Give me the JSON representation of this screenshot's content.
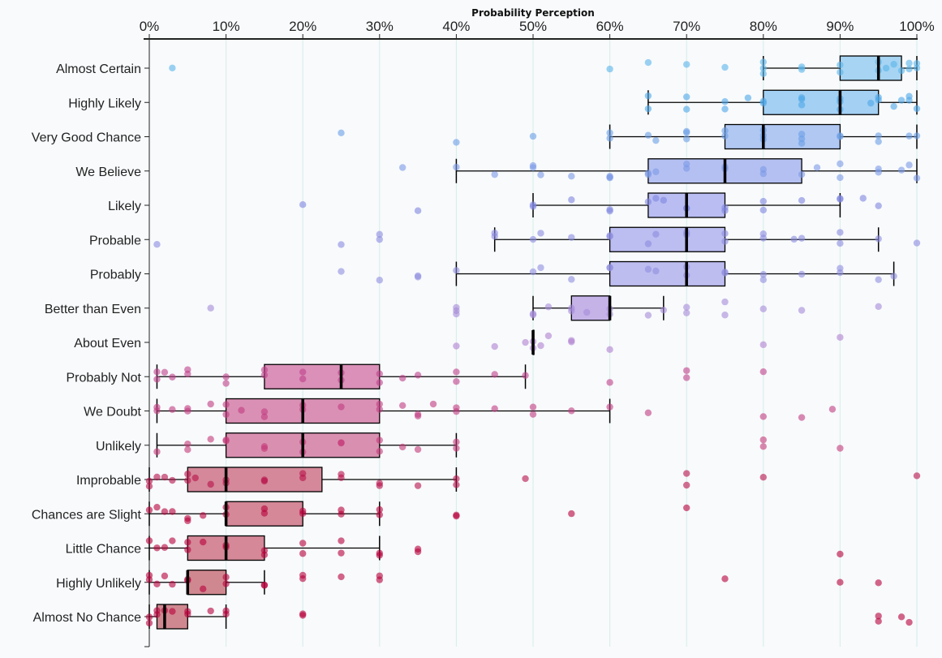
{
  "chart_data": {
    "type": "box",
    "title": "Probability Perception",
    "xlabel": "Probability Perception",
    "ylabel": "",
    "xlim": [
      0,
      100
    ],
    "x_ticks": [
      "0%",
      "10%",
      "20%",
      "30%",
      "40%",
      "50%",
      "60%",
      "70%",
      "80%",
      "90%",
      "100%"
    ],
    "grid": true,
    "rows": [
      {
        "label": "Almost Certain",
        "whisker": [
          80,
          100
        ],
        "box": [
          90,
          98
        ],
        "median": 95,
        "point_color": "#5ab4ea",
        "box_color": "#a6d4f2",
        "points": [
          3,
          60,
          65,
          70,
          75,
          80,
          80,
          80,
          85,
          85,
          90,
          90,
          95,
          95,
          96,
          97,
          98,
          99,
          99,
          100,
          100
        ]
      },
      {
        "label": "Highly Likely",
        "whisker": [
          65,
          100
        ],
        "box": [
          80,
          95
        ],
        "median": 90,
        "point_color": "#4da6e8",
        "box_color": "#a3d0f3",
        "points": [
          65,
          65,
          70,
          70,
          75,
          75,
          78,
          80,
          80,
          85,
          85,
          85,
          90,
          90,
          90,
          94,
          95,
          95,
          97,
          98,
          99,
          99,
          100
        ]
      },
      {
        "label": "Very Good Chance",
        "whisker": [
          60,
          100
        ],
        "box": [
          75,
          90
        ],
        "median": 80,
        "point_color": "#6a9ee6",
        "box_color": "#b0c8f2",
        "points": [
          25,
          40,
          50,
          60,
          60,
          65,
          66,
          70,
          70,
          70,
          75,
          75,
          80,
          80,
          80,
          85,
          85,
          85,
          90,
          90,
          95,
          95,
          99,
          100
        ]
      },
      {
        "label": "We Believe",
        "whisker": [
          40,
          100
        ],
        "box": [
          65,
          85
        ],
        "median": 75,
        "point_color": "#7b9ae6",
        "box_color": "#b5c0f2",
        "points": [
          33,
          40,
          45,
          50,
          50,
          51,
          55,
          60,
          60,
          60,
          65,
          65,
          66,
          70,
          70,
          75,
          75,
          80,
          80,
          85,
          87,
          90,
          90,
          95,
          95,
          98,
          99,
          100
        ]
      },
      {
        "label": "Likely",
        "whisker": [
          50,
          90
        ],
        "box": [
          65,
          75
        ],
        "median": 70,
        "point_color": "#7f86e0",
        "box_color": "#b9bdf2",
        "points": [
          20,
          35,
          50,
          50,
          55,
          60,
          60,
          65,
          66,
          67,
          70,
          70,
          75,
          75,
          80,
          80,
          85,
          90,
          90,
          93,
          95
        ]
      },
      {
        "label": "Probable",
        "whisker": [
          45,
          95
        ],
        "box": [
          60,
          75
        ],
        "median": 70,
        "point_color": "#8a8ae0",
        "box_color": "#bcbdf0",
        "points": [
          1,
          25,
          30,
          30,
          45,
          45,
          50,
          51,
          55,
          60,
          60,
          65,
          66,
          70,
          70,
          75,
          75,
          80,
          80,
          84,
          85,
          90,
          90,
          95,
          100
        ]
      },
      {
        "label": "Probably",
        "whisker": [
          40,
          97
        ],
        "box": [
          60,
          75
        ],
        "median": 70,
        "point_color": "#8f8de0",
        "box_color": "#bdbdf0",
        "points": [
          25,
          30,
          35,
          35,
          40,
          50,
          51,
          55,
          60,
          60,
          65,
          66,
          70,
          70,
          75,
          75,
          80,
          80,
          85,
          90,
          90,
          95,
          97
        ]
      },
      {
        "label": "Better than Even",
        "whisker": [
          50,
          67
        ],
        "box": [
          55,
          60
        ],
        "median": 60,
        "point_color": "#a58ad8",
        "box_color": "#c5b3e8",
        "points": [
          8,
          40,
          40,
          40,
          50,
          50,
          52,
          55,
          55,
          57,
          60,
          60,
          65,
          67,
          70,
          70,
          75,
          75,
          80,
          85,
          95
        ]
      },
      {
        "label": "About Even",
        "whisker": [
          50,
          50
        ],
        "box": [
          50,
          50
        ],
        "median": 50,
        "point_color": "#b080d0",
        "box_color": "#cdb0e0",
        "points": [
          40,
          45,
          49,
          50,
          50,
          51,
          52,
          55,
          55,
          60,
          80,
          90
        ]
      },
      {
        "label": "Probably Not",
        "whisker": [
          1,
          49
        ],
        "box": [
          15,
          30
        ],
        "median": 25,
        "point_color": "#c0408a",
        "box_color": "#da90b8",
        "points": [
          1,
          1,
          2,
          3,
          5,
          5,
          10,
          10,
          15,
          15,
          20,
          20,
          25,
          25,
          30,
          30,
          33,
          35,
          40,
          40,
          45,
          49,
          60,
          70,
          70,
          80
        ]
      },
      {
        "label": "We Doubt",
        "whisker": [
          1,
          60
        ],
        "box": [
          10,
          30
        ],
        "median": 20,
        "point_color": "#c23c80",
        "box_color": "#da90b4",
        "points": [
          1,
          1,
          3,
          5,
          5,
          8,
          10,
          10,
          12,
          15,
          15,
          20,
          20,
          25,
          30,
          30,
          33,
          35,
          35,
          37,
          40,
          40,
          45,
          50,
          50,
          55,
          60,
          65,
          80,
          85,
          89
        ]
      },
      {
        "label": "Unlikely",
        "whisker": [
          1,
          40
        ],
        "box": [
          10,
          30
        ],
        "median": 20,
        "point_color": "#c43878",
        "box_color": "#d990b0",
        "points": [
          1,
          5,
          5,
          8,
          10,
          10,
          15,
          15,
          20,
          20,
          25,
          25,
          30,
          30,
          33,
          35,
          40,
          40,
          80,
          80,
          90
        ]
      },
      {
        "label": "Improbable",
        "whisker": [
          0,
          40
        ],
        "box": [
          5,
          22.5
        ],
        "median": 10,
        "point_color": "#b8104a",
        "box_color": "#d4889a",
        "points": [
          0,
          0,
          1,
          2,
          3,
          5,
          5,
          6,
          8,
          10,
          10,
          15,
          15,
          20,
          20,
          25,
          25,
          30,
          30,
          35,
          40,
          40,
          49,
          70,
          70,
          80,
          100
        ]
      },
      {
        "label": "Chances are Slight",
        "whisker": [
          0,
          30
        ],
        "box": [
          10,
          20
        ],
        "median": 10,
        "point_color": "#b8003a",
        "box_color": "#d48898",
        "points": [
          0,
          1,
          2,
          3,
          5,
          5,
          7,
          10,
          10,
          15,
          15,
          20,
          20,
          25,
          25,
          30,
          30,
          40,
          40,
          55,
          70
        ]
      },
      {
        "label": "Little Chance",
        "whisker": [
          0,
          30
        ],
        "box": [
          5,
          15
        ],
        "median": 10,
        "point_color": "#b8003a",
        "box_color": "#d48898",
        "points": [
          0,
          1,
          2,
          3,
          5,
          5,
          7,
          10,
          10,
          15,
          15,
          20,
          20,
          25,
          25,
          30,
          30,
          35,
          35,
          90
        ]
      },
      {
        "label": "Highly Unlikely",
        "whisker": [
          0,
          15
        ],
        "box": [
          5,
          10
        ],
        "median": 5,
        "point_color": "#b8003a",
        "box_color": "#d08890",
        "points": [
          0,
          0,
          1,
          2,
          3,
          5,
          5,
          7,
          10,
          10,
          15,
          15,
          20,
          20,
          25,
          30,
          30,
          75,
          90,
          95
        ]
      },
      {
        "label": "Almost No Chance",
        "whisker": [
          0,
          10
        ],
        "box": [
          1,
          5
        ],
        "median": 2,
        "point_color": "#b8003a",
        "box_color": "#d08890",
        "points": [
          0,
          0,
          1,
          1,
          2,
          3,
          5,
          5,
          8,
          10,
          10,
          20,
          20,
          95,
          95,
          98,
          99
        ]
      }
    ]
  }
}
